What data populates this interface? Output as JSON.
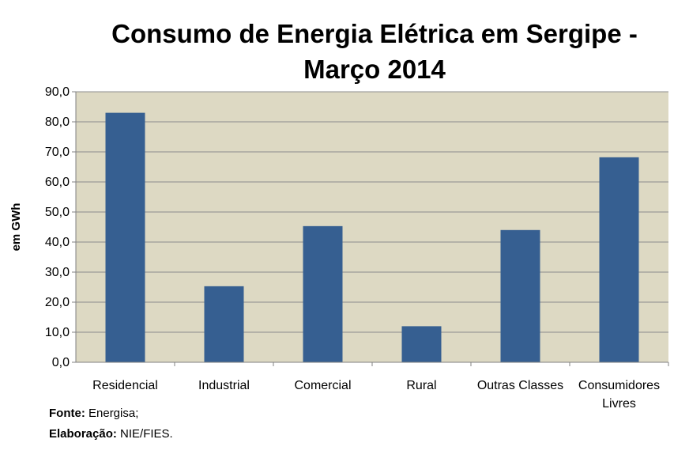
{
  "chart_data": {
    "type": "bar",
    "title_lines": [
      "Consumo de Energia Elétrica em Sergipe -",
      "Março 2014"
    ],
    "ylabel": "em GWh",
    "xlabel": "",
    "categories": [
      "Residencial",
      "Industrial",
      "Comercial",
      "Rural",
      "Outras Classes",
      "Consumidores Livres"
    ],
    "category_label_lines": [
      [
        "Residencial"
      ],
      [
        "Industrial"
      ],
      [
        "Comercial"
      ],
      [
        "Rural"
      ],
      [
        "Outras Classes"
      ],
      [
        "Consumidores",
        "Livres"
      ]
    ],
    "values": [
      83.0,
      25.3,
      45.3,
      12.0,
      44.0,
      68.2
    ],
    "ylim": [
      0,
      90
    ],
    "yticks": [
      "0,0",
      "10,0",
      "20,0",
      "30,0",
      "40,0",
      "50,0",
      "60,0",
      "70,0",
      "80,0",
      "90,0"
    ],
    "grid": true,
    "legend": "none",
    "colors": {
      "bar": "#365f91",
      "plot_background": "#ddd9c3",
      "grid": "#8c8c8c"
    }
  },
  "source": {
    "fonte_label": "Fonte:",
    "fonte_value": "Energisa;",
    "elaboracao_label": "Elaboração:",
    "elaboracao_value": "NIE/FIES."
  }
}
